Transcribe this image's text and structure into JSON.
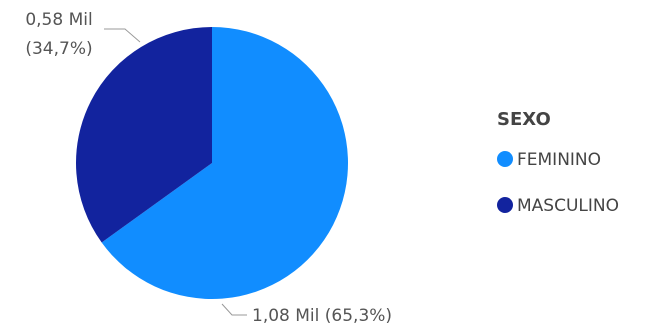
{
  "chart_data": {
    "type": "pie",
    "title": "",
    "legend": {
      "title": "SEXO",
      "position": "right"
    },
    "slices": [
      {
        "name": "FEMININO",
        "value": 1.08,
        "value_label": "1,08 Mil",
        "percent_label": "(65,3%)",
        "color": "#118DFF"
      },
      {
        "name": "MASCULINO",
        "value": 0.58,
        "value_label": "0,58 Mil",
        "percent_label": "(34,7%)",
        "color": "#12239E"
      }
    ]
  }
}
